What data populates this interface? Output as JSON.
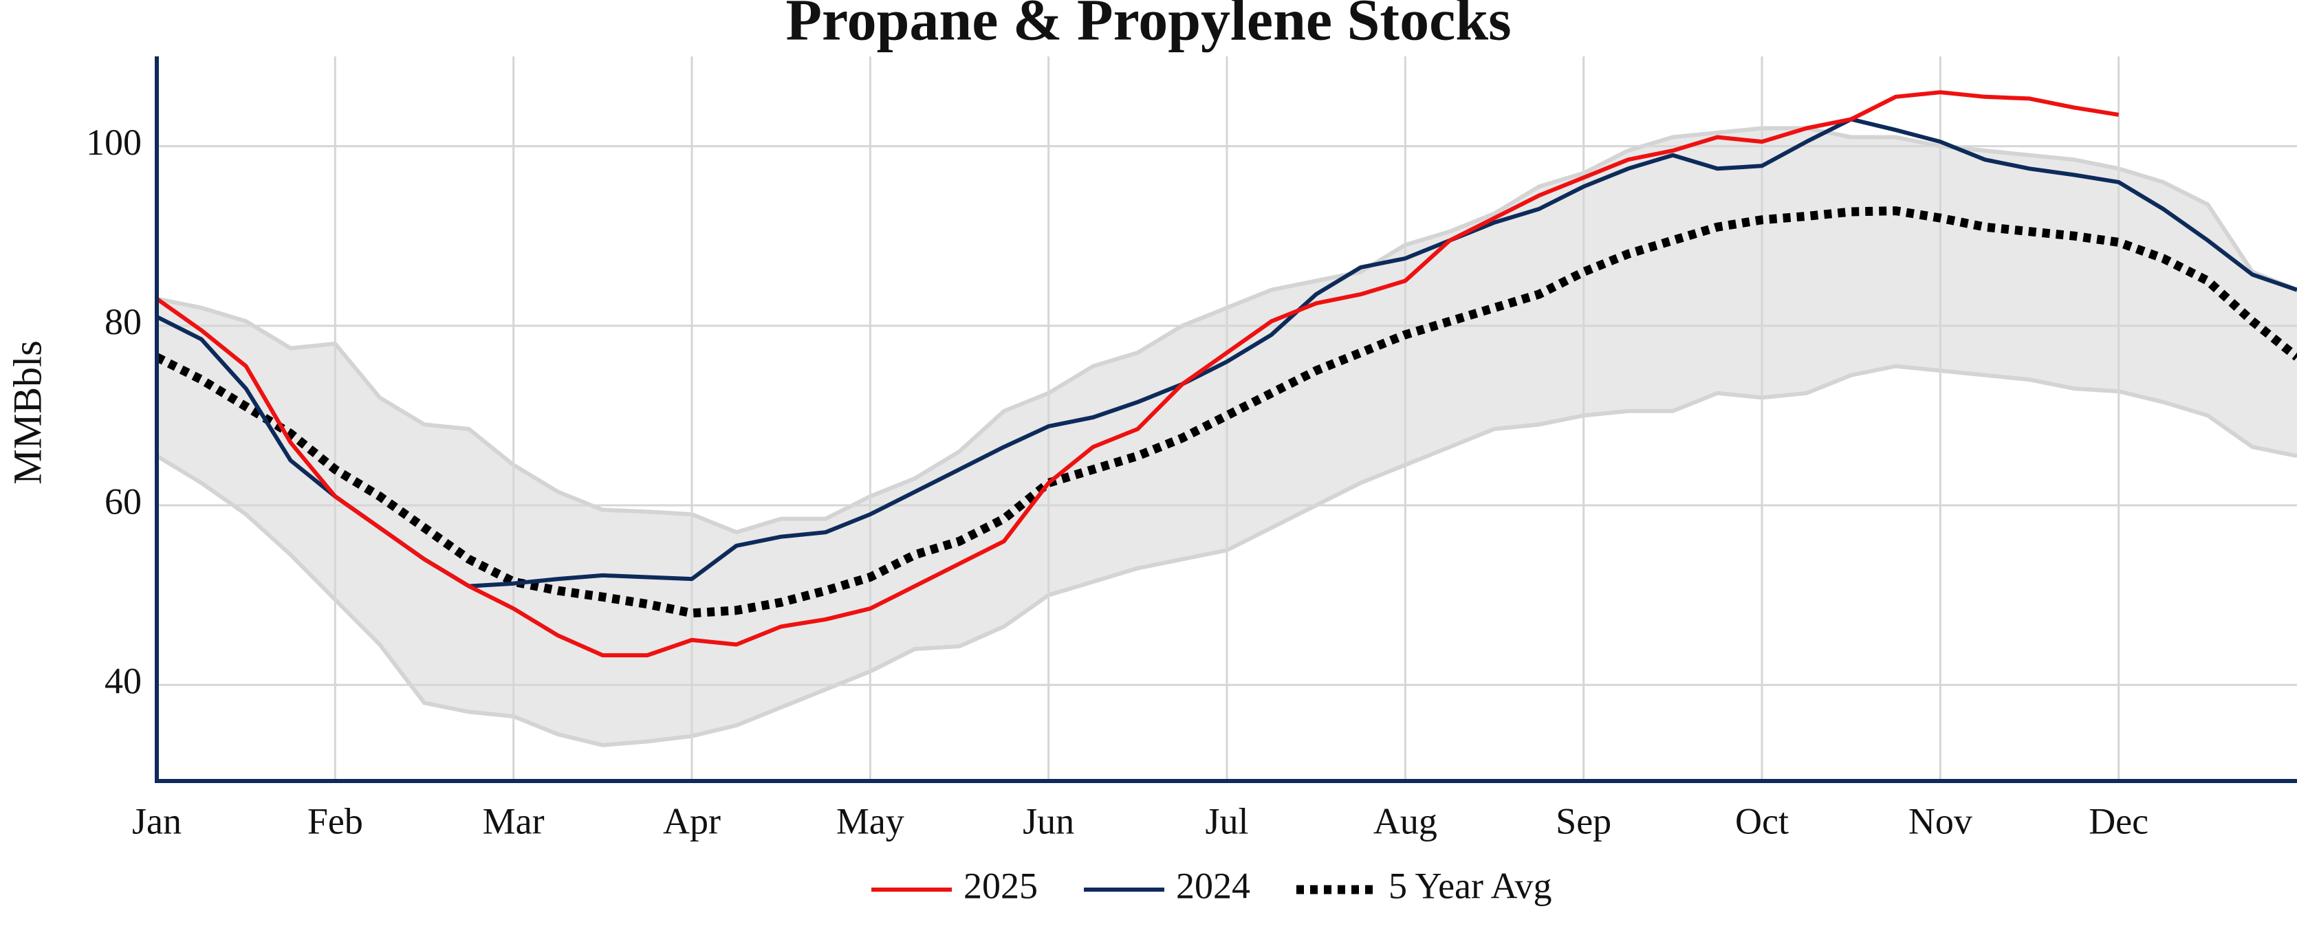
{
  "chart_data": {
    "type": "line",
    "title": "Propane & Propylene Stocks",
    "y_label": "MMBbls",
    "x": [
      0,
      0.25,
      0.5,
      0.75,
      1,
      1.25,
      1.5,
      1.75,
      2,
      2.25,
      2.5,
      2.75,
      3,
      3.25,
      3.5,
      3.75,
      4,
      4.25,
      4.5,
      4.75,
      5,
      5.25,
      5.5,
      5.75,
      6,
      6.25,
      6.5,
      6.75,
      7,
      7.25,
      7.5,
      7.75,
      8,
      8.25,
      8.5,
      8.75,
      9,
      9.25,
      9.5,
      9.75,
      10,
      10.25,
      10.5,
      10.75,
      11,
      11.25,
      11.5,
      11.75,
      12
    ],
    "xlim": [
      0,
      12
    ],
    "xticks": [
      {
        "value": 0,
        "label": "Jan"
      },
      {
        "value": 1,
        "label": "Feb"
      },
      {
        "value": 2,
        "label": "Mar"
      },
      {
        "value": 3,
        "label": "Apr"
      },
      {
        "value": 4,
        "label": "May"
      },
      {
        "value": 5,
        "label": "Jun"
      },
      {
        "value": 6,
        "label": "Jul"
      },
      {
        "value": 7,
        "label": "Aug"
      },
      {
        "value": 8,
        "label": "Sep"
      },
      {
        "value": 9,
        "label": "Oct"
      },
      {
        "value": 10,
        "label": "Nov"
      },
      {
        "value": 11,
        "label": "Dec"
      }
    ],
    "ylim": [
      29.3,
      110
    ],
    "yticks": [
      40,
      60,
      80,
      100
    ],
    "grid": true,
    "legend": "bottom",
    "band": {
      "color": "#e8e8e8",
      "edge_color": "#d4d4d4",
      "upper": [
        83,
        82,
        80.5,
        77.5,
        78,
        72,
        69,
        68.5,
        64.5,
        61.5,
        59.5,
        59.3,
        59,
        57,
        58.5,
        58.5,
        61,
        63,
        66,
        70.5,
        72.5,
        75.5,
        77,
        80,
        82,
        84,
        85,
        86,
        89,
        90.5,
        92.5,
        95.5,
        97,
        99.5,
        101,
        101.5,
        102,
        102,
        101,
        101,
        100,
        99.5,
        99,
        98.5,
        97.5,
        96,
        93.5,
        86,
        84
      ],
      "lower": [
        65.5,
        62.5,
        59,
        54.5,
        49.5,
        44.5,
        38,
        37,
        36.5,
        34.5,
        33.3,
        33.7,
        34.3,
        35.5,
        37.5,
        39.5,
        41.5,
        44,
        44.3,
        46.5,
        50,
        51.5,
        53,
        54,
        55,
        57.5,
        60,
        62.5,
        64.5,
        66.5,
        68.5,
        69,
        70,
        70.5,
        70.5,
        72.5,
        72,
        72.5,
        74.5,
        75.5,
        75,
        74.5,
        74,
        73,
        72.7,
        71.5,
        70,
        66.5,
        65.5
      ]
    },
    "series": [
      {
        "name": "2025",
        "color": "#ee1111",
        "style": "solid",
        "values": [
          83,
          79.5,
          75.5,
          67,
          61,
          57.5,
          54,
          51,
          48.5,
          45.5,
          43.3,
          43.3,
          45,
          44.5,
          46.5,
          47.3,
          48.5,
          51,
          53.5,
          56,
          62.5,
          66.5,
          68.5,
          73.5,
          77,
          80.5,
          82.5,
          83.5,
          85,
          89.5,
          92,
          94.5,
          96.5,
          98.5,
          99.5,
          101,
          100.5,
          102,
          103,
          105.5,
          106,
          105.5,
          105.3,
          104.3,
          103.5,
          null,
          null,
          null,
          null
        ]
      },
      {
        "name": "2024",
        "color": "#0d2b5a",
        "style": "solid",
        "values": [
          81,
          78.5,
          73,
          65,
          61,
          57.5,
          54,
          51,
          51.3,
          51.8,
          52.2,
          52,
          51.8,
          55.5,
          56.5,
          57,
          59,
          61.5,
          64,
          66.5,
          68.8,
          69.8,
          71.5,
          73.5,
          76,
          79,
          83.5,
          86.5,
          87.5,
          89.5,
          91.5,
          93,
          95.5,
          97.5,
          99,
          97.5,
          97.8,
          100.5,
          103,
          101.8,
          100.5,
          98.5,
          97.5,
          96.8,
          96,
          93,
          89.5,
          85.7,
          84
        ]
      },
      {
        "name": "5 Year Avg",
        "color": "#000000",
        "style": "dotted",
        "values": [
          76.5,
          74,
          71,
          68,
          64,
          61,
          57.5,
          54,
          51.5,
          50.5,
          49.8,
          49,
          48,
          48.3,
          49.2,
          50.5,
          52,
          54.5,
          56,
          58.5,
          62.5,
          64,
          65.5,
          67.5,
          70,
          72.5,
          75,
          77,
          79,
          80.5,
          82,
          83.5,
          86,
          88,
          89.5,
          91,
          91.8,
          92.2,
          92.7,
          92.8,
          92,
          91,
          90.5,
          90,
          89.3,
          87.5,
          85,
          80.5,
          76.5
        ]
      }
    ]
  }
}
